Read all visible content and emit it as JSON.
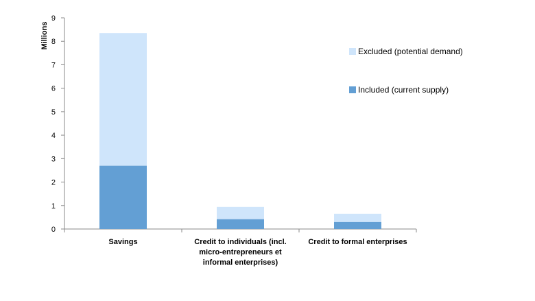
{
  "chart_data": {
    "type": "bar",
    "stacked": true,
    "title": "",
    "xlabel": "",
    "ylabel": "Millions",
    "ylim": [
      0,
      9
    ],
    "yticks": [
      0,
      1,
      2,
      3,
      4,
      5,
      6,
      7,
      8,
      9
    ],
    "grid": false,
    "legend_position": "right",
    "categories": [
      [
        "Savings"
      ],
      [
        "Credit to individuals (incl.",
        "micro-entrepreneurs et",
        "informal enterprises)"
      ],
      [
        "Credit to formal enterprises"
      ]
    ],
    "series": [
      {
        "name": "Included (current supply)",
        "values": [
          2.7,
          0.42,
          0.3
        ],
        "color": "#639fd4"
      },
      {
        "name": "Excluded (potential demand)",
        "values": [
          5.65,
          0.52,
          0.35
        ],
        "color": "#cfe5fb"
      }
    ]
  }
}
